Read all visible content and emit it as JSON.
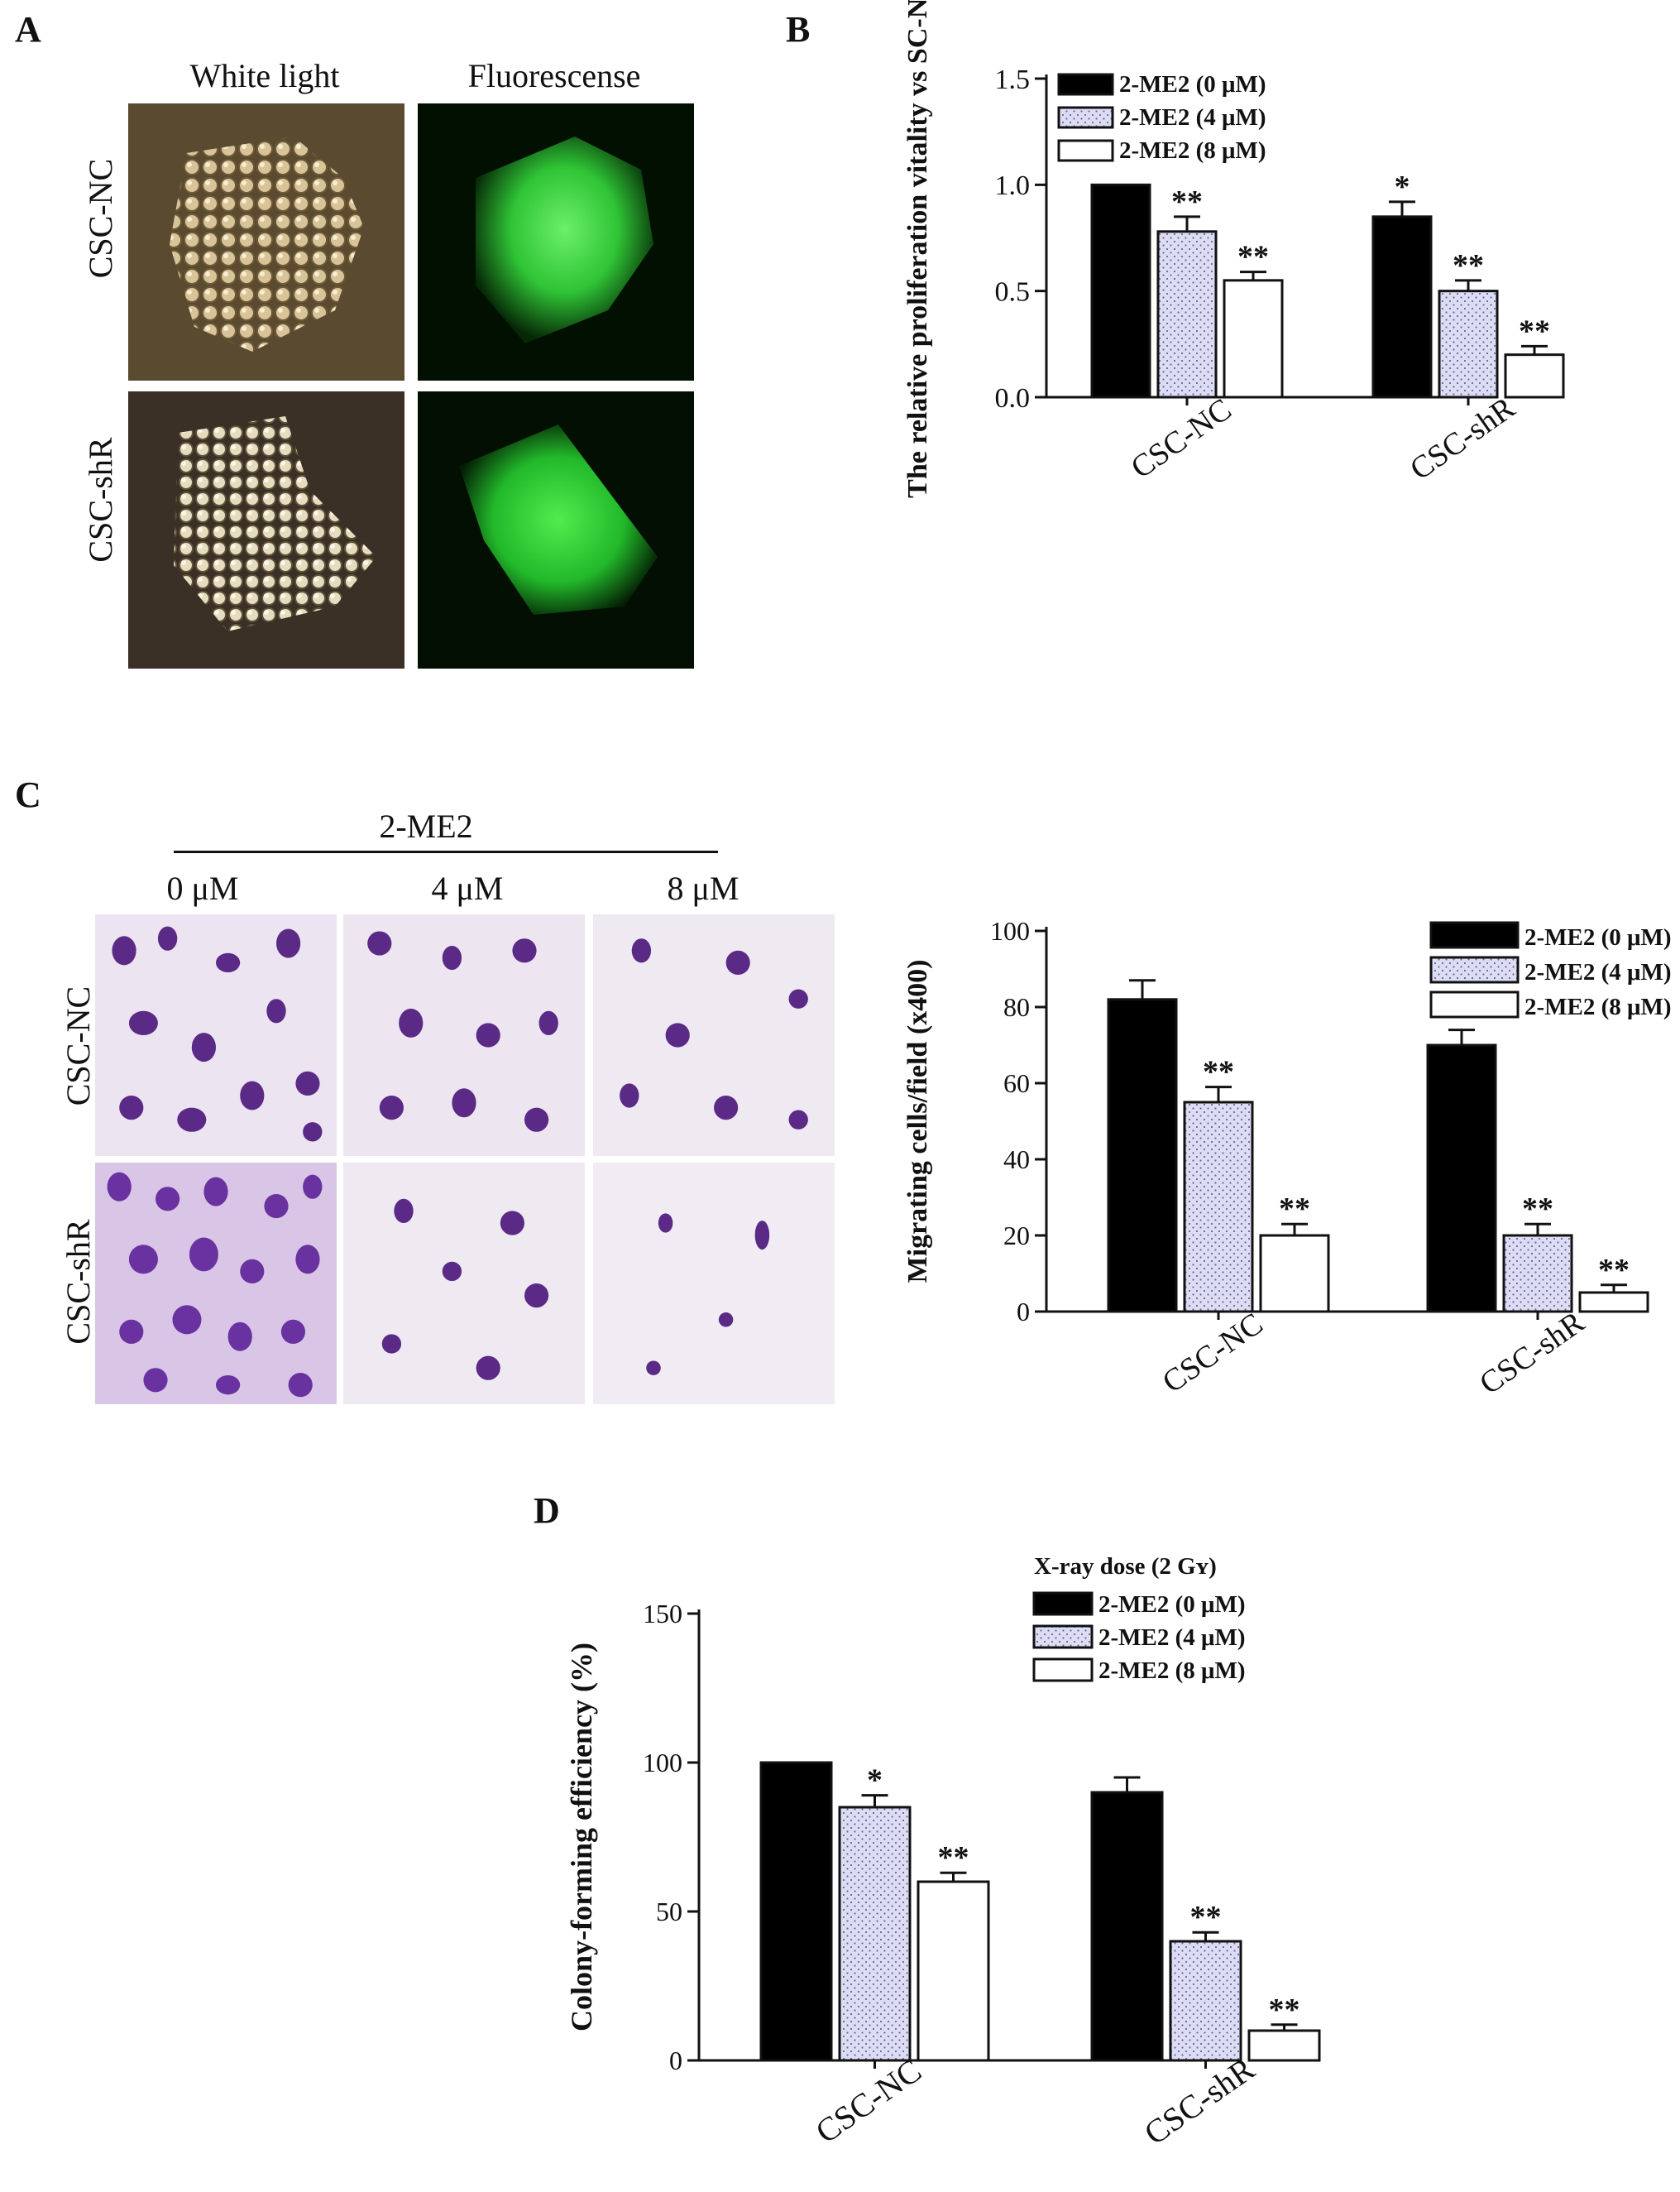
{
  "panels": {
    "a": {
      "letter": "A",
      "columns": [
        "White light",
        "Fluorescense"
      ],
      "rows": [
        "CSC-NC",
        "CSC-shR"
      ]
    },
    "b": {
      "letter": "B"
    },
    "c": {
      "letter": "C",
      "treatment": "2-ME2",
      "doses": [
        "0 μM",
        "4 μM",
        "8 μM"
      ],
      "rows": [
        "CSC-NC",
        "CSC-shR"
      ]
    },
    "d": {
      "letter": "D"
    }
  },
  "colors": {
    "bar0": "#000000",
    "bar4": "#dcdcf5",
    "bar8": "#ffffff",
    "stain": "#5b2a86",
    "fluor": "#33d63f"
  },
  "chart_data": [
    {
      "id": "b",
      "type": "bar",
      "categories": [
        "CSC-NC",
        "CSC-shR"
      ],
      "ylabel": "The relative proliferation vitality vs SC-NC",
      "ylim": [
        0,
        1.5
      ],
      "yticks": [
        "0.0",
        "0.5",
        "1.0",
        "1.5"
      ],
      "legend_title": "",
      "legend_placement": "top-left",
      "series": [
        {
          "name": "2-ME2 (0 μM)",
          "values": [
            1.0,
            0.85
          ],
          "errors": [
            0,
            0.07
          ],
          "sig": [
            "",
            "*"
          ],
          "pattern": "solid"
        },
        {
          "name": "2-ME2 (4 μM)",
          "values": [
            0.78,
            0.5
          ],
          "errors": [
            0.07,
            0.05
          ],
          "sig": [
            "**",
            "**"
          ],
          "pattern": "dots"
        },
        {
          "name": "2-ME2 (8 μM)",
          "values": [
            0.55,
            0.2
          ],
          "errors": [
            0.04,
            0.04
          ],
          "sig": [
            "**",
            "**"
          ],
          "pattern": "open"
        }
      ]
    },
    {
      "id": "c",
      "type": "bar",
      "categories": [
        "CSC-NC",
        "CSC-shR"
      ],
      "ylabel": "Migrating cells/field (x400)",
      "ylim": [
        0,
        100
      ],
      "yticks": [
        "0",
        "20",
        "40",
        "60",
        "80",
        "100"
      ],
      "legend_title": "",
      "legend_placement": "top-right",
      "series": [
        {
          "name": "2-ME2 (0 μM)",
          "values": [
            82,
            70
          ],
          "errors": [
            5,
            4
          ],
          "sig": [
            "",
            ""
          ],
          "pattern": "solid"
        },
        {
          "name": "2-ME2 (4 μM)",
          "values": [
            55,
            20
          ],
          "errors": [
            4,
            3
          ],
          "sig": [
            "**",
            "**"
          ],
          "pattern": "dots"
        },
        {
          "name": "2-ME2 (8 μM)",
          "values": [
            20,
            5
          ],
          "errors": [
            3,
            2
          ],
          "sig": [
            "**",
            "**"
          ],
          "pattern": "open"
        }
      ]
    },
    {
      "id": "d",
      "type": "bar",
      "categories": [
        "CSC-NC",
        "CSC-shR"
      ],
      "ylabel": "Colony-forming efficiency (%)",
      "ylim": [
        0,
        150
      ],
      "yticks": [
        "0",
        "50",
        "100",
        "150"
      ],
      "legend_title": "X-ray dose (2 Gʏ)",
      "legend_placement": "top-right",
      "series": [
        {
          "name": "2-ME2 (0 μM)",
          "values": [
            100,
            90
          ],
          "errors": [
            0,
            5
          ],
          "sig": [
            "",
            ""
          ],
          "pattern": "solid"
        },
        {
          "name": "2-ME2 (4 μM)",
          "values": [
            85,
            40
          ],
          "errors": [
            4,
            3
          ],
          "sig": [
            "*",
            "**"
          ],
          "pattern": "dots"
        },
        {
          "name": "2-ME2 (8 μM)",
          "values": [
            60,
            10
          ],
          "errors": [
            3,
            2
          ],
          "sig": [
            "**",
            "**"
          ],
          "pattern": "open"
        }
      ]
    }
  ]
}
